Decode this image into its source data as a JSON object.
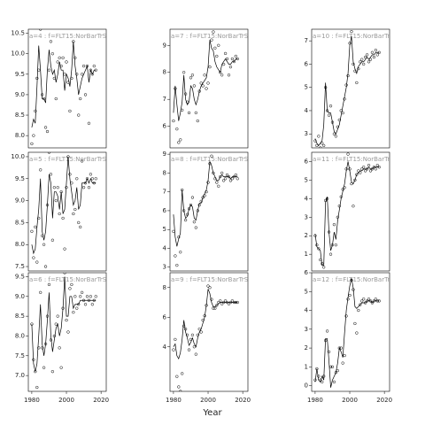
{
  "chart_data": {
    "type": "scatter",
    "xlabel": "Year",
    "x": [
      1980,
      1981,
      1982,
      1983,
      1984,
      1985,
      1986,
      1987,
      1988,
      1989,
      1990,
      1991,
      1992,
      1993,
      1994,
      1995,
      1996,
      1997,
      1998,
      1999,
      2000,
      2001,
      2002,
      2003,
      2004,
      2005,
      2006,
      2007,
      2008,
      2009,
      2010,
      2011,
      2012,
      2013,
      2014,
      2015,
      2016,
      2017
    ],
    "xlim": [
      1978,
      2023
    ],
    "xticks": [
      1980,
      2000,
      2020
    ],
    "panels": [
      {
        "label": "a=4 : f=FLT15:NorBarTrS",
        "ylim": [
          7.7,
          10.6
        ],
        "yticks": [
          {
            "value": 8,
            "label": "8.0"
          },
          {
            "value": 8.5,
            "label": "8.5"
          },
          {
            "value": 9,
            "label": "9.0"
          },
          {
            "value": 9.5,
            "label": "9.5"
          },
          {
            "value": 10,
            "label": "10.0"
          },
          {
            "value": 10.5,
            "label": "10.5"
          }
        ],
        "values": [
          7.8,
          8.0,
          8.6,
          9.4,
          9.6,
          10.6,
          9.0,
          8.9,
          8.2,
          8.1,
          9.6,
          10.3,
          10.0,
          9.4,
          8.9,
          9.8,
          9.9,
          9.7,
          9.9,
          9.5,
          9.8,
          9.3,
          8.6,
          9.4,
          10.3,
          9.9,
          9.5,
          8.5,
          8.9,
          9.5,
          9.7,
          9.0,
          9.7,
          8.3,
          9.6,
          9.5,
          9.7,
          9.6
        ],
        "fit": [
          8.2,
          8.4,
          8.3,
          9.2,
          10.2,
          9.6,
          8.9,
          8.9,
          8.8,
          9.6,
          10.1,
          9.7,
          9.5,
          9.6,
          9.3,
          9.5,
          9.8,
          9.6,
          9.6,
          9.1,
          9.5,
          9.4,
          9.2,
          9.6,
          10.3,
          9.7,
          9.4,
          9.0,
          9.2,
          9.4,
          9.5,
          9.6,
          9.7,
          9.3,
          9.6,
          9.5,
          9.6,
          9.6
        ]
      },
      {
        "label": "a=7 : f=FLT15:NorBarTrS",
        "ylim": [
          5.2,
          9.6
        ],
        "yticks": [
          6,
          7,
          8,
          9
        ],
        "values": [
          6.2,
          7.4,
          5.9,
          5.4,
          5.5,
          6.6,
          8.0,
          7.2,
          6.9,
          6.5,
          7.8,
          7.9,
          7.5,
          6.5,
          6.2,
          7.3,
          7.6,
          7.5,
          7.9,
          7.4,
          7.6,
          8.2,
          9.2,
          9.5,
          8.9,
          8.6,
          9.0,
          8.0,
          7.9,
          8.3,
          8.7,
          8.5,
          7.9,
          8.2,
          8.5,
          8.4,
          8.6,
          8.5
        ],
        "fit": [
          6.5,
          7.5,
          6.8,
          6.2,
          6.5,
          6.9,
          7.9,
          7.0,
          6.8,
          6.9,
          7.5,
          7.4,
          7.0,
          6.8,
          7.0,
          7.3,
          7.5,
          7.6,
          7.7,
          7.8,
          8.2,
          9.2,
          8.9,
          8.8,
          8.4,
          8.2,
          8.1,
          8.0,
          8.3,
          8.4,
          8.5,
          8.4,
          8.3,
          8.3,
          8.4,
          8.4,
          8.5,
          8.5
        ]
      },
      {
        "label": "a=10 : f=FLT15:NorBarTrS",
        "ylim": [
          2.4,
          7.5
        ],
        "yticks": [
          3,
          4,
          5,
          6,
          7
        ],
        "values": [
          2.7,
          2.5,
          2.9,
          2.4,
          2.6,
          2.5,
          5.0,
          4.0,
          3.8,
          4.2,
          3.5,
          3.0,
          2.9,
          3.3,
          3.6,
          4.0,
          3.9,
          4.5,
          5.1,
          5.5,
          6.9,
          7.4,
          6.0,
          5.7,
          5.2,
          5.8,
          6.1,
          6.2,
          6.0,
          6.3,
          6.4,
          6.1,
          6.2,
          6.5,
          6.3,
          6.6,
          6.4,
          6.5
        ],
        "fit": [
          2.8,
          2.6,
          2.5,
          2.6,
          2.7,
          3.4,
          5.2,
          4.0,
          3.9,
          3.9,
          3.5,
          3.1,
          3.0,
          3.2,
          3.4,
          3.8,
          4.2,
          4.6,
          5.0,
          5.6,
          6.8,
          7.2,
          6.1,
          5.8,
          5.6,
          5.9,
          6.0,
          6.1,
          6.1,
          6.2,
          6.3,
          6.2,
          6.3,
          6.4,
          6.4,
          6.5,
          6.5,
          6.5
        ]
      },
      {
        "label": "a=5 : f=FLT15:NorBarTrS",
        "ylim": [
          7.4,
          10.1
        ],
        "yticks": [
          {
            "value": 7.5,
            "label": "7.5"
          },
          {
            "value": 8,
            "label": "8.0"
          },
          {
            "value": 8.5,
            "label": "8.5"
          },
          {
            "value": 9,
            "label": "9.0"
          },
          {
            "value": 9.5,
            "label": "9.5"
          },
          {
            "value": 10,
            "label": "10.0"
          }
        ],
        "values": [
          8.3,
          7.7,
          8.4,
          7.6,
          8.6,
          9.7,
          8.2,
          8.0,
          7.5,
          8.9,
          10.1,
          9.6,
          8.1,
          9.3,
          9.0,
          9.3,
          8.7,
          9.2,
          8.6,
          7.9,
          9.3,
          10.0,
          9.6,
          9.4,
          8.7,
          8.8,
          9.5,
          8.5,
          8.4,
          9.9,
          9.3,
          9.4,
          9.5,
          9.3,
          9.6,
          9.5,
          9.4,
          9.5
        ],
        "fit": [
          8.0,
          7.8,
          7.9,
          8.4,
          8.8,
          9.5,
          8.3,
          8.1,
          8.3,
          8.9,
          9.6,
          9.4,
          8.6,
          9.2,
          9.2,
          9.1,
          8.8,
          9.2,
          8.7,
          8.8,
          9.4,
          10.0,
          9.5,
          9.2,
          8.9,
          9.0,
          9.3,
          8.8,
          8.9,
          9.4,
          9.4,
          9.4,
          9.5,
          9.4,
          9.5,
          9.4,
          9.4,
          9.4
        ]
      },
      {
        "label": "a=8 : f=FLT15:NorBarTrS",
        "ylim": [
          2.8,
          9.1
        ],
        "yticks": [
          3,
          4,
          5,
          6,
          7,
          8,
          9
        ],
        "values": [
          4.9,
          3.6,
          3.1,
          4.6,
          3.8,
          7.1,
          6.0,
          5.5,
          5.8,
          6.1,
          6.3,
          6.7,
          5.4,
          5.1,
          6.0,
          6.3,
          6.5,
          6.7,
          6.8,
          7.0,
          7.5,
          8.5,
          8.9,
          8.0,
          7.7,
          7.5,
          7.3,
          7.8,
          8.0,
          7.6,
          7.7,
          7.9,
          7.8,
          7.6,
          7.7,
          7.8,
          7.9,
          7.7
        ],
        "fit": [
          5.8,
          4.6,
          4.1,
          4.5,
          4.8,
          7.1,
          6.0,
          5.6,
          5.7,
          6.1,
          6.3,
          6.2,
          5.6,
          5.5,
          6.0,
          6.4,
          6.4,
          6.7,
          6.9,
          7.1,
          7.6,
          8.6,
          8.4,
          8.0,
          7.8,
          7.6,
          7.6,
          7.8,
          7.9,
          7.8,
          7.8,
          7.8,
          7.8,
          7.7,
          7.8,
          7.8,
          7.8,
          7.8
        ]
      },
      {
        "label": "a=11 : f=FLT15:NorBarTrS",
        "ylim": [
          0.1,
          6.5
        ],
        "yticks": [
          1,
          2,
          3,
          4,
          5,
          6
        ],
        "values": [
          2.0,
          1.5,
          1.3,
          0.7,
          0.5,
          0.3,
          3.9,
          4.0,
          2.2,
          1.0,
          1.5,
          2.6,
          1.5,
          3.0,
          3.6,
          4.1,
          4.5,
          4.6,
          5.6,
          6.4,
          5.6,
          4.8,
          3.6,
          5.0,
          5.3,
          5.5,
          5.4,
          5.6,
          5.7,
          5.5,
          5.6,
          5.8,
          5.5,
          5.6,
          5.7,
          5.6,
          5.8,
          5.7
        ],
        "fit": [
          2.1,
          1.4,
          1.3,
          1.2,
          0.4,
          0.4,
          3.8,
          4.1,
          2.2,
          1.2,
          1.5,
          2.2,
          1.8,
          2.8,
          3.4,
          4.0,
          4.4,
          4.8,
          5.5,
          6.0,
          5.5,
          4.9,
          4.8,
          5.0,
          5.3,
          5.4,
          5.5,
          5.5,
          5.6,
          5.6,
          5.6,
          5.7,
          5.6,
          5.6,
          5.7,
          5.7,
          5.7,
          5.7
        ]
      },
      {
        "label": "a=6 : f=FLT15:NorBarTrS",
        "ylim": [
          6.6,
          9.6
        ],
        "yticks": [
          {
            "value": 7,
            "label": "7.0"
          },
          {
            "value": 7.5,
            "label": "7.5"
          },
          {
            "value": 8,
            "label": "8.0"
          },
          {
            "value": 8.5,
            "label": "8.5"
          },
          {
            "value": 9,
            "label": "9.0"
          },
          {
            "value": 9.5,
            "label": "9.5"
          }
        ],
        "values": [
          8.3,
          7.4,
          7.1,
          6.7,
          7.7,
          9.1,
          7.7,
          7.2,
          7.8,
          8.5,
          9.3,
          7.9,
          7.1,
          8.0,
          8.3,
          8.5,
          7.7,
          7.2,
          8.7,
          9.6,
          8.4,
          8.1,
          9.2,
          9.3,
          8.6,
          9.0,
          8.7,
          8.8,
          9.0,
          9.1,
          8.9,
          8.8,
          9.0,
          8.9,
          9.0,
          8.8,
          8.9,
          9.0
        ],
        "fit": [
          8.3,
          7.3,
          7.1,
          7.3,
          8.0,
          8.8,
          7.8,
          7.5,
          7.8,
          8.4,
          9.1,
          8.0,
          7.6,
          7.9,
          8.2,
          8.3,
          8.0,
          8.2,
          8.7,
          9.5,
          8.5,
          8.5,
          9.0,
          9.0,
          8.7,
          8.8,
          8.8,
          8.8,
          8.9,
          8.9,
          8.9,
          8.9,
          8.9,
          8.9,
          8.9,
          8.9,
          8.9,
          8.9
        ]
      },
      {
        "label": "a=9 : f=FLT15:NorBarTrS",
        "ylim": [
          1,
          9
        ],
        "yticks": [
          4,
          6,
          8
        ],
        "values": [
          3.8,
          4.5,
          2.0,
          1.3,
          1.0,
          2.2,
          5.4,
          5.2,
          4.8,
          3.8,
          4.5,
          4.8,
          4.0,
          3.5,
          4.8,
          5.2,
          5.0,
          5.8,
          6.1,
          6.8,
          8.1,
          8.0,
          7.2,
          6.6,
          6.6,
          6.8,
          7.0,
          7.1,
          6.9,
          7.0,
          7.1,
          7.0,
          6.9,
          7.0,
          7.1,
          7.0,
          7.0,
          7.0
        ],
        "fit": [
          4.0,
          4.2,
          3.4,
          3.2,
          3.6,
          4.5,
          5.8,
          5.0,
          4.6,
          4.1,
          4.3,
          4.6,
          4.2,
          4.0,
          4.6,
          5.0,
          5.2,
          5.6,
          6.0,
          6.8,
          7.9,
          7.6,
          7.0,
          6.7,
          6.7,
          6.8,
          6.9,
          7.0,
          7.0,
          7.0,
          7.0,
          7.0,
          7.0,
          7.0,
          7.0,
          7.0,
          7.0,
          7.0
        ]
      },
      {
        "label": "a=12 : f=FLT15:NorBarTrS",
        "ylim": [
          -0.3,
          6.0
        ],
        "yticks": [
          0,
          1,
          2,
          3,
          4,
          5,
          6
        ],
        "values": [
          0.3,
          0.9,
          0.5,
          0.3,
          0.2,
          0.5,
          2.4,
          2.9,
          1.8,
          1.0,
          1.0,
          0.2,
          0.7,
          0.8,
          2.0,
          2.0,
          1.2,
          1.6,
          3.7,
          4.6,
          4.8,
          5.6,
          5.1,
          3.3,
          2.8,
          4.0,
          4.3,
          4.5,
          4.6,
          4.4,
          4.5,
          4.6,
          4.5,
          4.4,
          4.5,
          4.6,
          4.5,
          4.5
        ],
        "fit": [
          0.2,
          0.9,
          0.3,
          0.2,
          0.5,
          0.3,
          2.5,
          2.5,
          1.3,
          -0.1,
          0.3,
          0.5,
          0.7,
          1.2,
          2.0,
          1.8,
          1.5,
          2.8,
          4.0,
          4.7,
          5.3,
          5.7,
          5.2,
          4.2,
          4.1,
          4.2,
          4.3,
          4.4,
          4.4,
          4.4,
          4.5,
          4.5,
          4.5,
          4.4,
          4.5,
          4.5,
          4.5,
          4.5
        ]
      }
    ]
  }
}
